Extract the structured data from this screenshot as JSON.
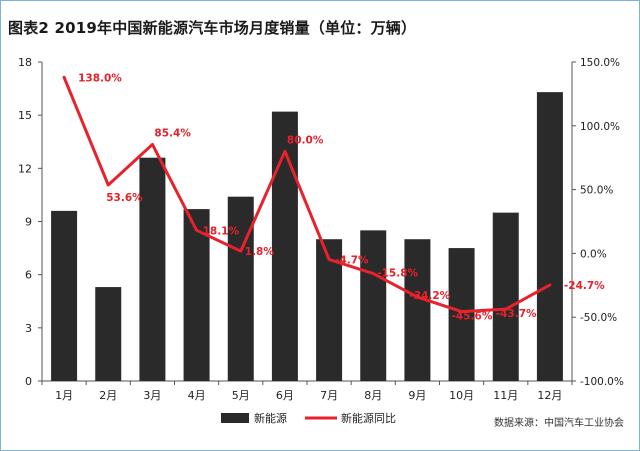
{
  "title": "图表2 2019年中国新能源汽车市场月度销量（单位：万辆）",
  "source": "数据来源：中国汽车工业协会",
  "colors": {
    "bar": "#2a2a2a",
    "line": "#e8212b",
    "axis": "#555555",
    "text": "#222222",
    "label": "#e8212b"
  },
  "chart_data": {
    "type": "bar",
    "categories": [
      "1月",
      "2月",
      "3月",
      "4月",
      "5月",
      "6月",
      "7月",
      "8月",
      "9月",
      "10月",
      "11月",
      "12月"
    ],
    "series": [
      {
        "name": "新能源",
        "type": "bar",
        "axis": "left",
        "values": [
          9.6,
          5.3,
          12.6,
          9.7,
          10.4,
          15.2,
          8.0,
          8.5,
          8.0,
          7.5,
          9.5,
          16.3
        ]
      },
      {
        "name": "新能源同比",
        "type": "line",
        "axis": "right",
        "values": [
          138.0,
          53.6,
          85.4,
          18.1,
          1.8,
          80.0,
          -4.7,
          -15.8,
          -34.2,
          -45.6,
          -43.7,
          -24.7
        ],
        "data_labels": [
          "138.0%",
          "53.6%",
          "85.4%",
          "18.1%",
          "1.8%",
          "80.0%",
          "-4.7%",
          "-15.8%",
          "-34.2%",
          "-45.6%",
          "-43.7%",
          "-24.7%"
        ]
      }
    ],
    "y_left": {
      "ylim": [
        0,
        18
      ],
      "ticks": [
        0,
        3,
        6,
        9,
        12,
        15,
        18
      ]
    },
    "y_right": {
      "ylim": [
        -100,
        150
      ],
      "ticks": [
        -100,
        -50,
        0,
        50,
        100,
        150
      ],
      "tick_labels": [
        "-100.0%",
        "-50.0%",
        "0.0%",
        "50.0%",
        "100.0%",
        "150.0%"
      ]
    },
    "legend": {
      "placement": "bottom-center"
    },
    "grid": false
  }
}
